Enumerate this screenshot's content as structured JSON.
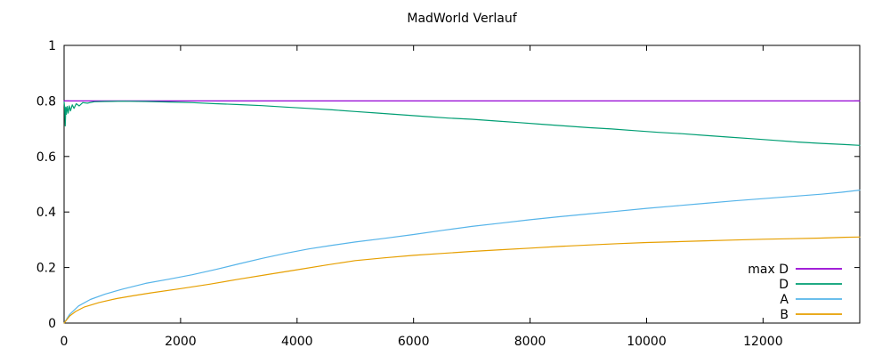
{
  "window": {
    "background": "#ffffff",
    "text_color": "#000000",
    "border_color": "#000000"
  },
  "chart_data": {
    "type": "line",
    "title": "MadWorld Verlauf",
    "xlabel": "",
    "ylabel": "",
    "xlim": [
      0,
      13660
    ],
    "ylim": [
      0,
      1
    ],
    "grid": false,
    "legend_position": "inside-bottom-right",
    "x_ticks": [
      0,
      2000,
      4000,
      6000,
      8000,
      10000,
      12000
    ],
    "x_tick_labels": [
      "0",
      "2000",
      "4000",
      "6000",
      "8000",
      "10000",
      "12000"
    ],
    "y_ticks": [
      0,
      0.2,
      0.4,
      0.6,
      0.8,
      1
    ],
    "y_tick_labels": [
      "0",
      "0.2",
      "0.4",
      "0.6",
      "0.8",
      "1"
    ],
    "series": [
      {
        "name": "max D",
        "color": "#9400d3",
        "points": [
          [
            0,
            0.8
          ],
          [
            13660,
            0.8
          ]
        ]
      },
      {
        "name": "D",
        "color": "#009e73",
        "points": [
          [
            0,
            0.796
          ],
          [
            10,
            0.775
          ],
          [
            20,
            0.71
          ],
          [
            30,
            0.778
          ],
          [
            40,
            0.752
          ],
          [
            55,
            0.78
          ],
          [
            70,
            0.756
          ],
          [
            90,
            0.782
          ],
          [
            110,
            0.764
          ],
          [
            140,
            0.786
          ],
          [
            170,
            0.773
          ],
          [
            210,
            0.79
          ],
          [
            260,
            0.782
          ],
          [
            320,
            0.794
          ],
          [
            400,
            0.792
          ],
          [
            520,
            0.797
          ],
          [
            700,
            0.798
          ],
          [
            1000,
            0.799
          ],
          [
            1400,
            0.798
          ],
          [
            1800,
            0.796
          ],
          [
            2200,
            0.794
          ],
          [
            2600,
            0.79
          ],
          [
            3000,
            0.787
          ],
          [
            3400,
            0.783
          ],
          [
            3800,
            0.778
          ],
          [
            4200,
            0.773
          ],
          [
            4600,
            0.768
          ],
          [
            5000,
            0.762
          ],
          [
            5400,
            0.756
          ],
          [
            5800,
            0.75
          ],
          [
            6200,
            0.744
          ],
          [
            6600,
            0.738
          ],
          [
            7000,
            0.734
          ],
          [
            7400,
            0.728
          ],
          [
            7800,
            0.722
          ],
          [
            8200,
            0.716
          ],
          [
            8600,
            0.71
          ],
          [
            9000,
            0.704
          ],
          [
            9400,
            0.699
          ],
          [
            9800,
            0.693
          ],
          [
            10200,
            0.687
          ],
          [
            10600,
            0.682
          ],
          [
            11000,
            0.676
          ],
          [
            11400,
            0.67
          ],
          [
            11800,
            0.664
          ],
          [
            12200,
            0.658
          ],
          [
            12600,
            0.652
          ],
          [
            13000,
            0.647
          ],
          [
            13400,
            0.643
          ],
          [
            13660,
            0.64
          ]
        ]
      },
      {
        "name": "A",
        "color": "#56b4e9",
        "points": [
          [
            0,
            0
          ],
          [
            100,
            0.032
          ],
          [
            250,
            0.062
          ],
          [
            450,
            0.085
          ],
          [
            700,
            0.104
          ],
          [
            1000,
            0.122
          ],
          [
            1400,
            0.143
          ],
          [
            1800,
            0.158
          ],
          [
            2200,
            0.174
          ],
          [
            2600,
            0.193
          ],
          [
            3000,
            0.213
          ],
          [
            3400,
            0.233
          ],
          [
            3800,
            0.251
          ],
          [
            4200,
            0.267
          ],
          [
            4600,
            0.28
          ],
          [
            5000,
            0.292
          ],
          [
            5500,
            0.305
          ],
          [
            6000,
            0.319
          ],
          [
            6500,
            0.334
          ],
          [
            7000,
            0.348
          ],
          [
            7500,
            0.36
          ],
          [
            8000,
            0.372
          ],
          [
            8500,
            0.383
          ],
          [
            9000,
            0.393
          ],
          [
            9500,
            0.403
          ],
          [
            10000,
            0.413
          ],
          [
            10500,
            0.422
          ],
          [
            11000,
            0.431
          ],
          [
            11500,
            0.44
          ],
          [
            12000,
            0.448
          ],
          [
            12500,
            0.456
          ],
          [
            13000,
            0.464
          ],
          [
            13350,
            0.471
          ],
          [
            13660,
            0.479
          ]
        ]
      },
      {
        "name": "B",
        "color": "#e69f00",
        "points": [
          [
            0,
            0
          ],
          [
            100,
            0.026
          ],
          [
            200,
            0.042
          ],
          [
            350,
            0.058
          ],
          [
            600,
            0.074
          ],
          [
            900,
            0.088
          ],
          [
            1200,
            0.099
          ],
          [
            1500,
            0.109
          ],
          [
            2000,
            0.124
          ],
          [
            2500,
            0.14
          ],
          [
            3000,
            0.158
          ],
          [
            3500,
            0.175
          ],
          [
            4000,
            0.192
          ],
          [
            4500,
            0.209
          ],
          [
            5000,
            0.225
          ],
          [
            5500,
            0.235
          ],
          [
            6000,
            0.244
          ],
          [
            6500,
            0.251
          ],
          [
            7000,
            0.258
          ],
          [
            7500,
            0.264
          ],
          [
            8000,
            0.27
          ],
          [
            8500,
            0.276
          ],
          [
            9000,
            0.281
          ],
          [
            9500,
            0.286
          ],
          [
            10000,
            0.29
          ],
          [
            10500,
            0.293
          ],
          [
            11000,
            0.296
          ],
          [
            11500,
            0.299
          ],
          [
            12000,
            0.302
          ],
          [
            12500,
            0.304
          ],
          [
            13000,
            0.306
          ],
          [
            13400,
            0.309
          ],
          [
            13660,
            0.31
          ]
        ]
      }
    ]
  }
}
